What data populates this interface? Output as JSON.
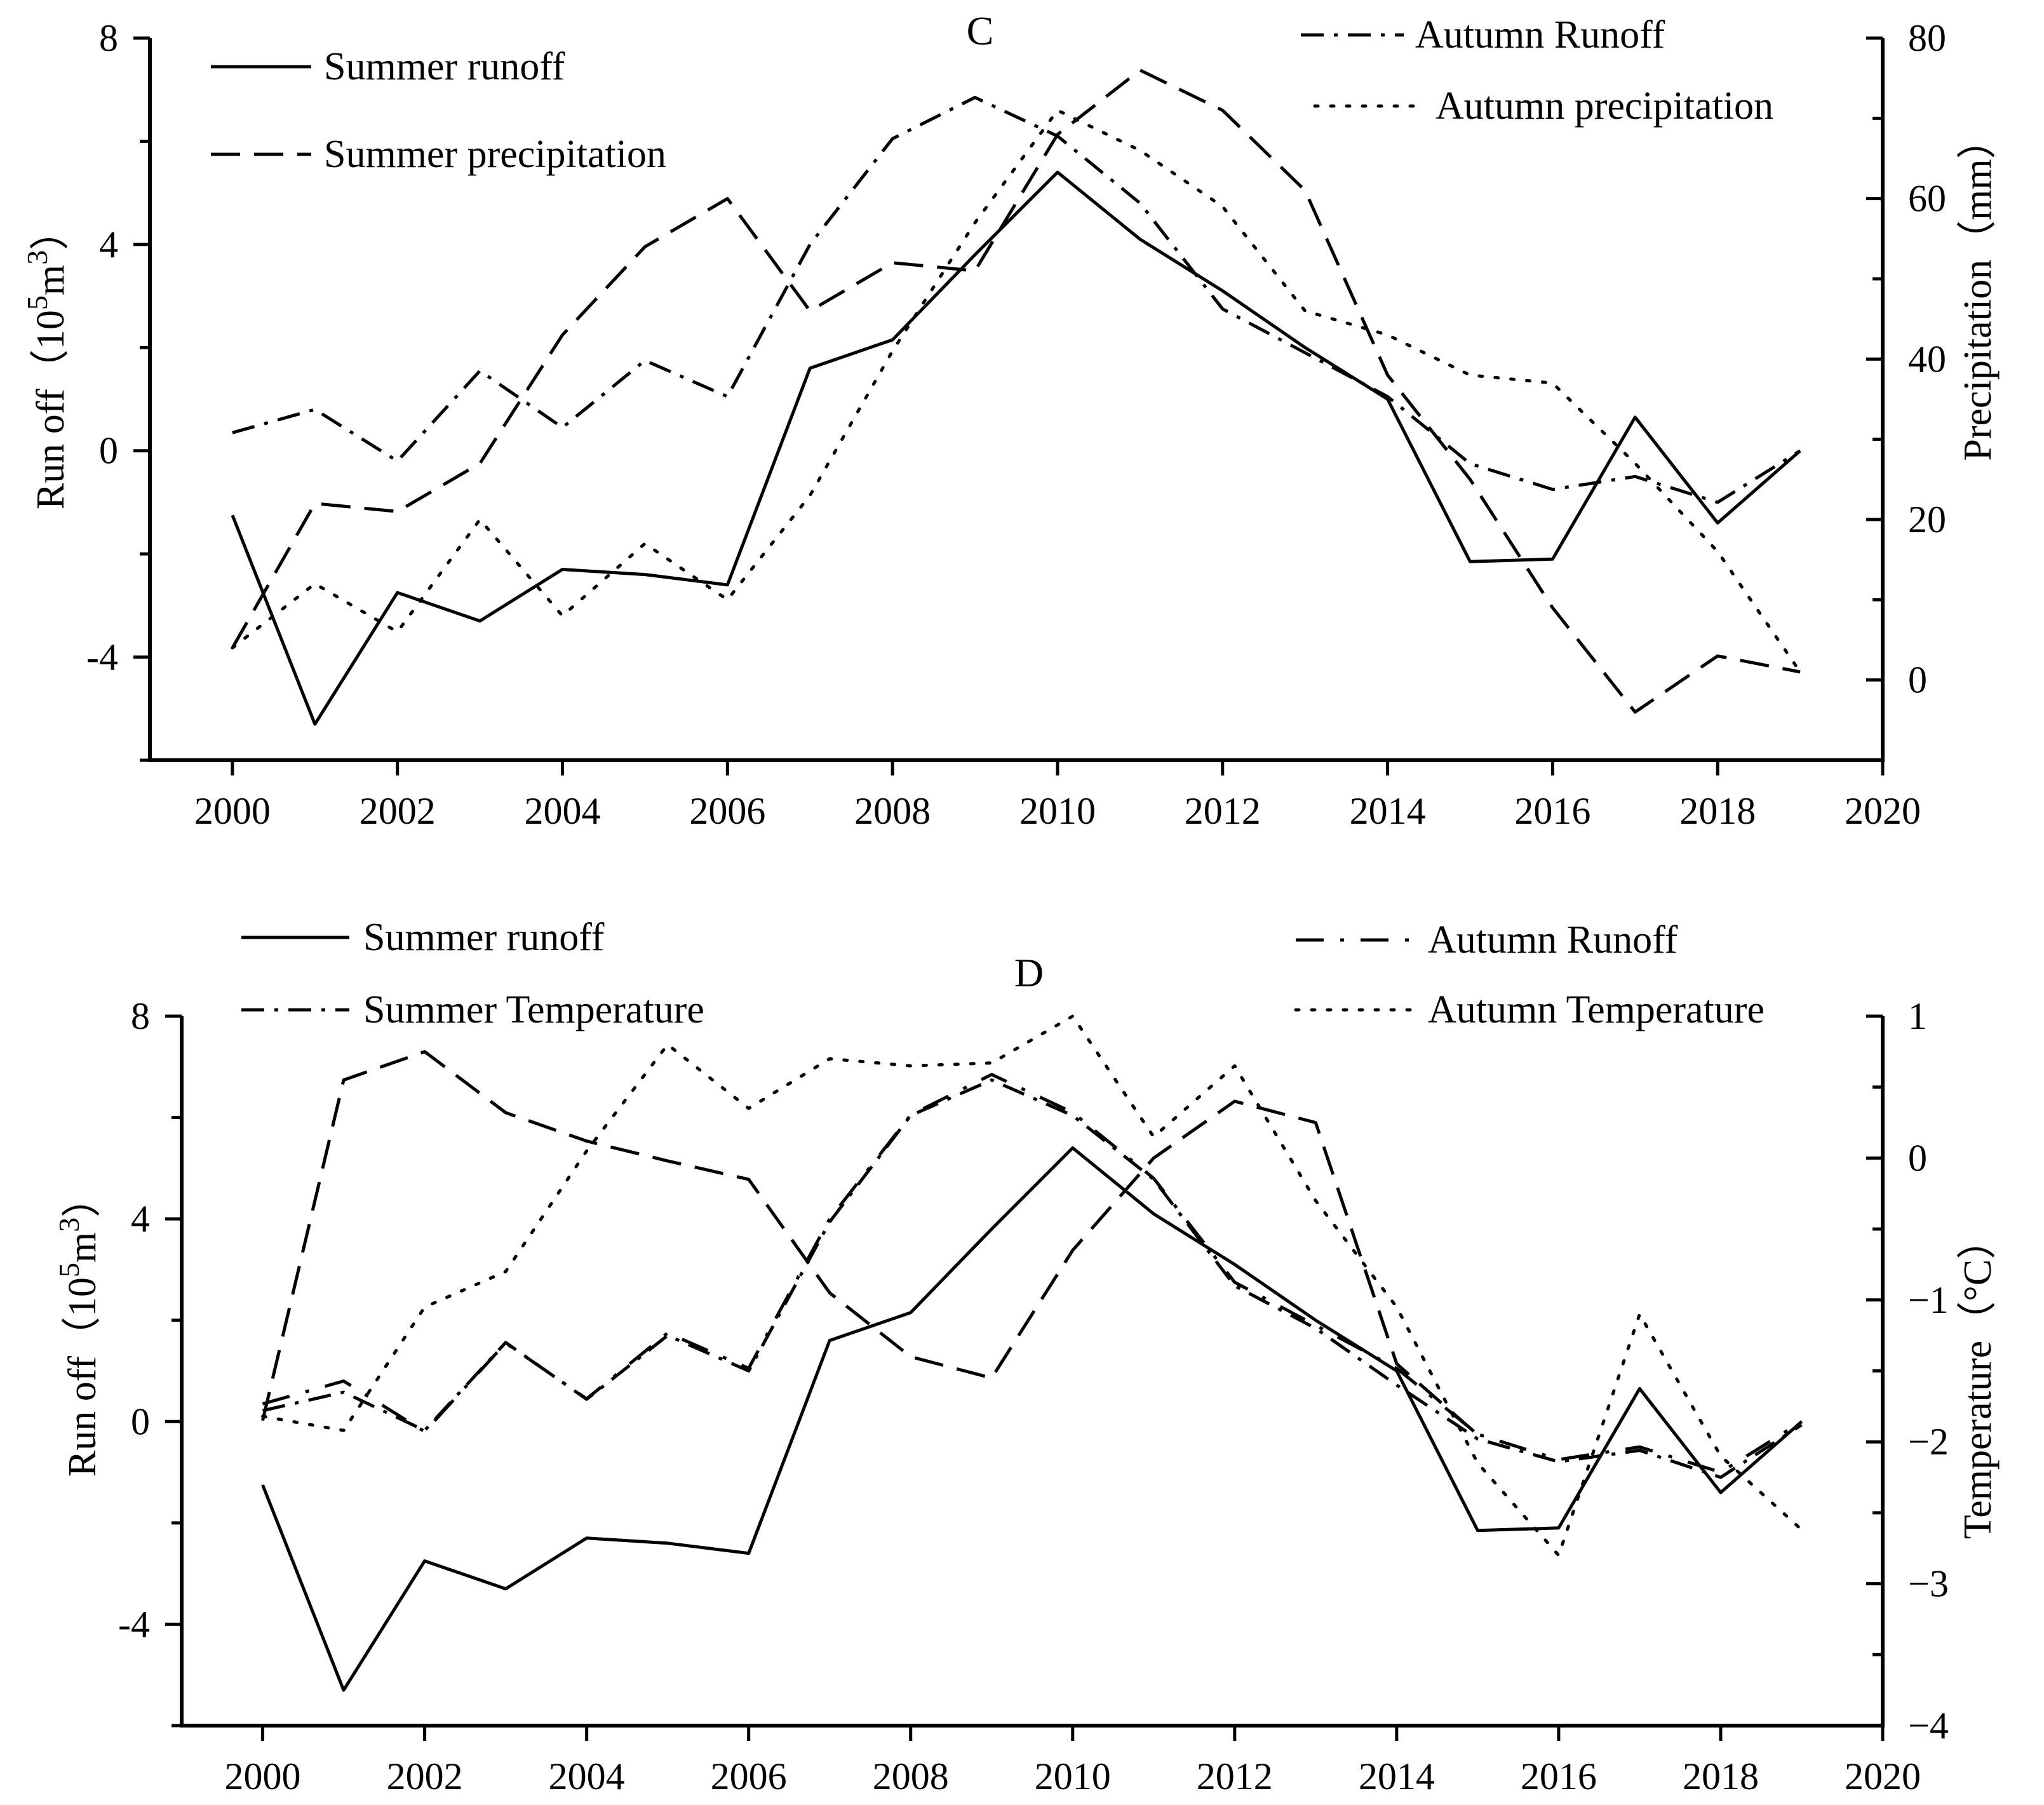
{
  "chart_data": [
    {
      "type": "line",
      "title": "C",
      "x": [
        2000,
        2001,
        2002,
        2003,
        2004,
        2005,
        2006,
        2007,
        2008,
        2009,
        2010,
        2011,
        2012,
        2013,
        2014,
        2015,
        2016,
        2017,
        2018,
        2019
      ],
      "xlim": [
        1999,
        2020
      ],
      "xticks": [
        2000,
        2002,
        2004,
        2006,
        2008,
        2010,
        2012,
        2014,
        2016,
        2018,
        2020
      ],
      "xtick_labels": [
        "2000",
        "2002",
        "2004",
        "2006",
        "2008",
        "2010",
        "2012",
        "2014",
        "2016",
        "2018",
        "2020"
      ],
      "ylabel_left": "Run off（10",
      "ylabel_left_sup1": "5",
      "ylabel_left_unit": "m",
      "ylabel_left_sup2": "3",
      "ylabel_left_close": "）",
      "ylim_left": [
        -6,
        8
      ],
      "yticks_left": [
        -4,
        0,
        4,
        8
      ],
      "ytick_labels_left": [
        "-4",
        "0",
        "4",
        "8"
      ],
      "ylabel_right": "Precipitation（mm）",
      "ylim_right": [
        -10,
        80
      ],
      "yticks_right": [
        0,
        20,
        40,
        60,
        80
      ],
      "ytick_labels_right": [
        "0",
        "20",
        "40",
        "60",
        "80"
      ],
      "series": [
        {
          "name": "Summer runoff",
          "axis": "left",
          "style": "solid",
          "values": [
            -1.25,
            -5.3,
            -2.75,
            -3.3,
            -2.3,
            -2.4,
            -2.6,
            1.6,
            2.15,
            3.8,
            5.4,
            4.1,
            3.1,
            2.0,
            1.0,
            -2.15,
            -2.1,
            0.65,
            -1.4,
            0.0
          ]
        },
        {
          "name": "Summer precipitation",
          "axis": "right",
          "style": "dashed",
          "values": [
            4,
            22,
            21,
            27,
            43,
            54,
            60,
            46,
            52,
            51,
            68,
            76,
            71,
            61,
            38,
            25,
            9,
            -4,
            3,
            1
          ]
        },
        {
          "name": "Autumn Runoff",
          "axis": "left",
          "style": "dashdot",
          "values": [
            0.35,
            0.8,
            -0.2,
            1.55,
            0.45,
            1.75,
            1.05,
            4.0,
            6.05,
            6.85,
            6.1,
            4.8,
            2.75,
            1.9,
            1.05,
            -0.25,
            -0.75,
            -0.5,
            -1.0,
            0.0
          ]
        },
        {
          "name": "Autumn precipitation",
          "axis": "right",
          "style": "dotted",
          "values": [
            4,
            12,
            6,
            20,
            8,
            17,
            10,
            23,
            41,
            57,
            71,
            66,
            59,
            46,
            43,
            38,
            37,
            27,
            16,
            1
          ]
        }
      ],
      "legend": "top-left and top-right",
      "grid": false
    },
    {
      "type": "line",
      "title": "D",
      "x": [
        2000,
        2001,
        2002,
        2003,
        2004,
        2005,
        2006,
        2007,
        2008,
        2009,
        2010,
        2011,
        2012,
        2013,
        2014,
        2015,
        2016,
        2017,
        2018,
        2019
      ],
      "xlim": [
        1999,
        2020
      ],
      "xticks": [
        2000,
        2002,
        2004,
        2006,
        2008,
        2010,
        2012,
        2014,
        2016,
        2018,
        2020
      ],
      "xtick_labels": [
        "2000",
        "2002",
        "2004",
        "2006",
        "2008",
        "2010",
        "2012",
        "2014",
        "2016",
        "2018",
        "2020"
      ],
      "ylabel_left": "Run off（10",
      "ylabel_left_sup1": "5",
      "ylabel_left_unit": "m",
      "ylabel_left_sup2": "3",
      "ylabel_left_close": "）",
      "ylim_left": [
        -6,
        8
      ],
      "yticks_left": [
        -4,
        0,
        4,
        8
      ],
      "ytick_labels_left": [
        "-4",
        "0",
        "4",
        "8"
      ],
      "ylabel_right": "Temperature（°C）",
      "ylim_right": [
        -4,
        1
      ],
      "yticks_right": [
        -4,
        -3,
        -2,
        -1,
        0,
        1
      ],
      "ytick_labels_right": [
        "−4",
        "−3",
        "−2",
        "−1",
        "0",
        "1"
      ],
      "series": [
        {
          "name": "Summer runoff",
          "axis": "left",
          "style": "solid",
          "values": [
            -1.25,
            -5.3,
            -2.75,
            -3.3,
            -2.3,
            -2.4,
            -2.6,
            1.6,
            2.15,
            3.8,
            5.4,
            4.1,
            3.1,
            2.0,
            1.0,
            -2.15,
            -2.1,
            0.65,
            -1.4,
            0.0
          ]
        },
        {
          "name": "Summer Temperature",
          "axis": "right",
          "style": "dashdot",
          "values": [
            -1.78,
            -1.65,
            -1.92,
            -1.3,
            -1.7,
            -1.25,
            -1.5,
            -0.45,
            0.3,
            0.55,
            0.3,
            -0.15,
            -0.9,
            -1.2,
            -1.6,
            -1.98,
            -2.14,
            -2.06,
            -2.25,
            -1.88
          ]
        },
        {
          "name": "Autumn Runoff",
          "axis": "left",
          "style": "loose-dashdot",
          "values": [
            0.35,
            0.8,
            -0.2,
            1.55,
            0.45,
            1.75,
            1.05,
            4.0,
            6.05,
            6.85,
            6.1,
            4.8,
            2.75,
            1.9,
            1.05,
            -0.25,
            -0.75,
            -0.5,
            -1.0,
            0.0
          ]
        },
        {
          "name": "Autumn Temperature",
          "axis": "right",
          "style": "dotted",
          "values": [
            -1.82,
            -1.92,
            -1.05,
            -0.8,
            0.05,
            0.8,
            0.35,
            0.7,
            0.65,
            0.67,
            1.0,
            0.15,
            0.65,
            -0.3,
            -1.05,
            -2.15,
            -2.8,
            -1.1,
            -2.1,
            -2.62
          ]
        },
        {
          "name": "Autumn Runoff",
          "axis": "right",
          "style": "dashed",
          "values": [
            -1.85,
            0.55,
            0.75,
            0.32,
            0.12,
            -0.02,
            -0.15,
            -0.95,
            -1.4,
            -1.55,
            -0.65,
            0.0,
            0.4,
            0.25,
            -1.45,
            -1.95,
            null,
            null,
            null,
            null
          ]
        }
      ],
      "legend": "top-left and top-right",
      "grid": false
    }
  ]
}
